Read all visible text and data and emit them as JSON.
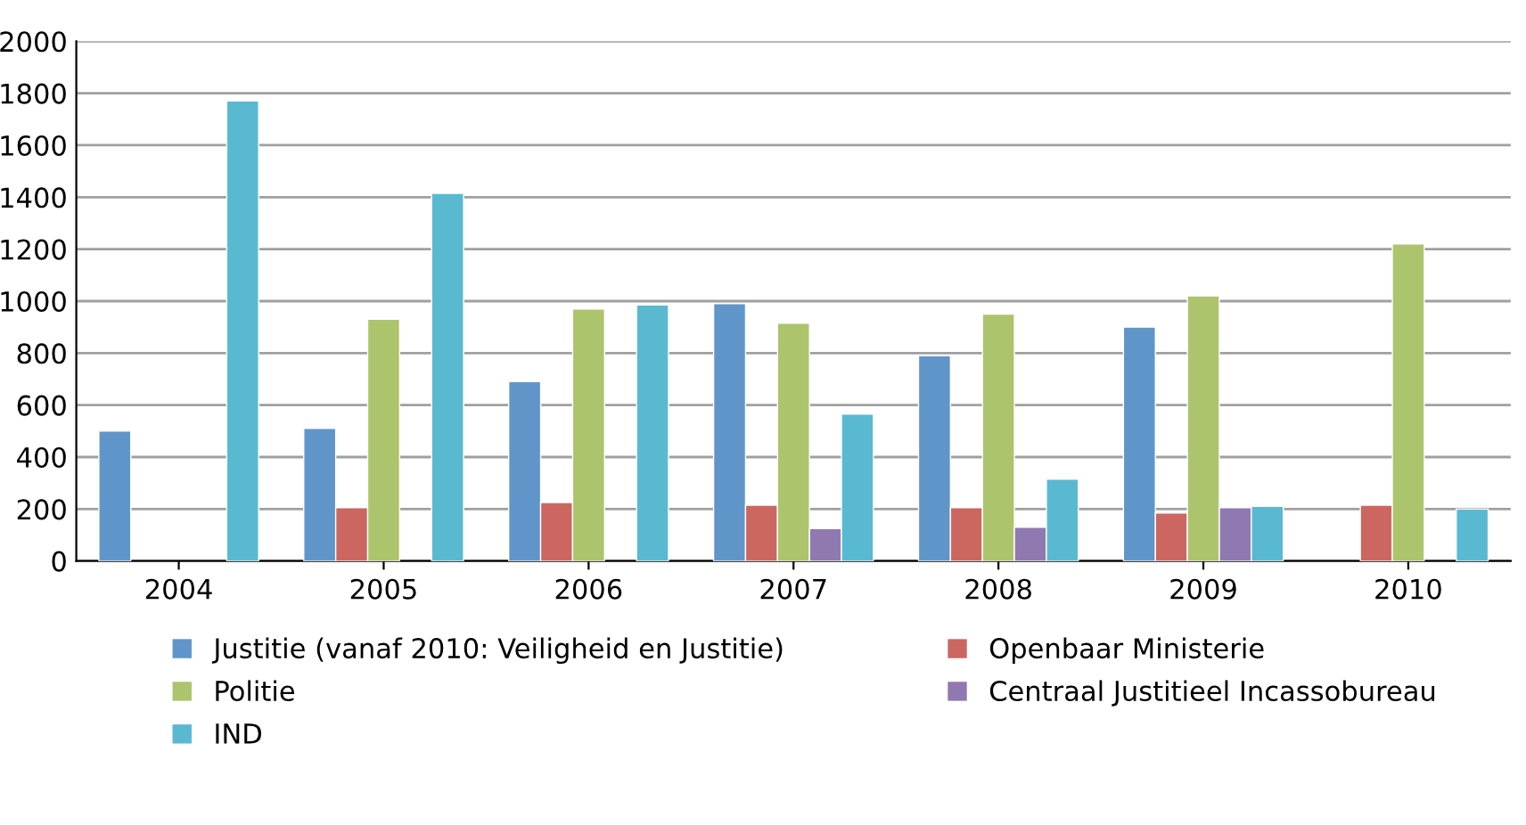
{
  "chart_data": {
    "type": "bar",
    "categories": [
      "2004",
      "2005",
      "2006",
      "2007",
      "2008",
      "2009",
      "2010"
    ],
    "series": [
      {
        "name": "Justitie (vanaf 2010: Veiligheid en Justitie)",
        "color": "#6095c9",
        "values": [
          500,
          510,
          690,
          990,
          790,
          900,
          null
        ]
      },
      {
        "name": "Openbaar Ministerie",
        "color": "#cc6660",
        "values": [
          null,
          205,
          225,
          215,
          205,
          185,
          215
        ]
      },
      {
        "name": "Politie",
        "color": "#acc46c",
        "values": [
          null,
          930,
          970,
          915,
          950,
          1020,
          1220
        ]
      },
      {
        "name": "Centraal Justitieel Incassobureau",
        "color": "#9079b0",
        "values": [
          null,
          null,
          null,
          125,
          130,
          205,
          null
        ]
      },
      {
        "name": "IND",
        "color": "#59b9d1",
        "values": [
          1770,
          1415,
          985,
          565,
          315,
          210,
          200
        ]
      }
    ],
    "ylim": [
      0,
      2000
    ],
    "yticks": [
      0,
      200,
      400,
      600,
      800,
      1000,
      1200,
      1400,
      1600,
      1800,
      2000
    ],
    "grid": "y",
    "legend": "bottom"
  }
}
